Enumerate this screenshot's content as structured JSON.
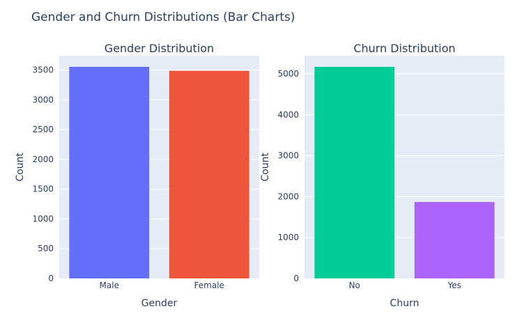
{
  "title": "Gender and Churn Distributions (Bar Charts)",
  "chart_data": [
    {
      "type": "bar",
      "title": "Gender Distribution",
      "xlabel": "Gender",
      "ylabel": "Count",
      "categories": [
        "Male",
        "Female"
      ],
      "values": [
        3555,
        3488
      ],
      "colors": [
        "#636efa",
        "#ef553b"
      ],
      "ylim": [
        0,
        3742
      ],
      "yticks": [
        0,
        500,
        1000,
        1500,
        2000,
        2500,
        3000,
        3500
      ],
      "grid": true
    },
    {
      "type": "bar",
      "title": "Churn Distribution",
      "xlabel": "Churn",
      "ylabel": "Count",
      "categories": [
        "No",
        "Yes"
      ],
      "values": [
        5174,
        1869
      ],
      "colors": [
        "#00cc96",
        "#ab63fa"
      ],
      "ylim": [
        0,
        5446
      ],
      "yticks": [
        0,
        1000,
        2000,
        3000,
        4000,
        5000
      ],
      "grid": true
    }
  ],
  "colors": {
    "plot_bg": "#e5ecf6",
    "grid": "#ffffff",
    "text": "#2a3f5f"
  }
}
